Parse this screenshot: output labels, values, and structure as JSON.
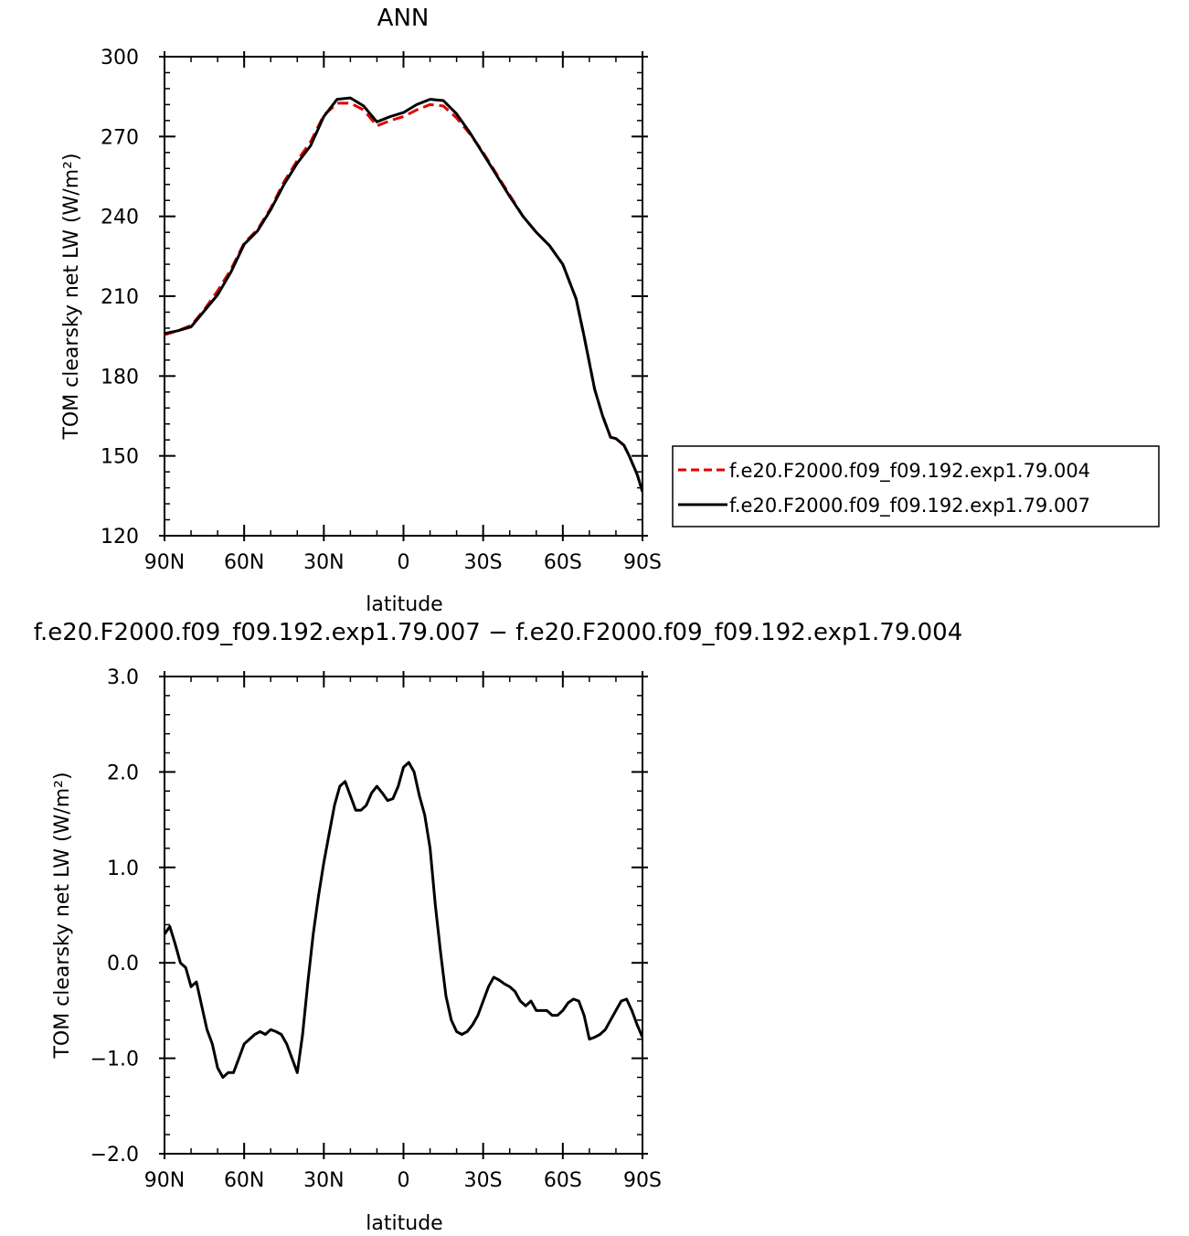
{
  "chart_data": [
    {
      "type": "line",
      "title": "ANN",
      "xlabel": "latitude",
      "ylabel": "TOM clearsky net LW (W/m²)",
      "xlim": [
        90,
        -90
      ],
      "ylim": [
        120,
        300
      ],
      "xticks": [
        {
          "value": 90,
          "label": "90N"
        },
        {
          "value": 60,
          "label": "60N"
        },
        {
          "value": 30,
          "label": "30N"
        },
        {
          "value": 0,
          "label": "0"
        },
        {
          "value": -30,
          "label": "30S"
        },
        {
          "value": -60,
          "label": "60S"
        },
        {
          "value": -90,
          "label": "90S"
        }
      ],
      "yticks": [
        {
          "value": 120,
          "label": "120"
        },
        {
          "value": 150,
          "label": "150"
        },
        {
          "value": 180,
          "label": "180"
        },
        {
          "value": 210,
          "label": "210"
        },
        {
          "value": 240,
          "label": "240"
        },
        {
          "value": 270,
          "label": "270"
        },
        {
          "value": 300,
          "label": "300"
        }
      ],
      "legend_position": "right",
      "series": [
        {
          "name": "f.e20.F2000.f09_f09.192.exp1.79.004",
          "color": "#e00000",
          "dash": "dashed",
          "x": [
            90,
            85,
            80,
            75,
            70,
            65,
            60,
            55,
            50,
            45,
            40,
            35,
            30,
            25,
            20,
            15,
            10,
            5,
            0,
            -5,
            -10,
            -15,
            -20,
            -25,
            -30,
            -35,
            -40,
            -45,
            -50,
            -55,
            -60,
            -65,
            -68,
            -70,
            -72,
            -75,
            -78,
            -80,
            -83,
            -85,
            -88,
            -90
          ],
          "y": [
            195.5,
            197,
            199,
            205,
            212,
            220,
            230,
            235,
            243,
            253,
            261,
            268,
            278,
            282.5,
            282.5,
            280,
            274,
            276,
            277.5,
            280,
            282,
            281.5,
            277,
            271,
            264,
            256,
            248,
            240,
            234,
            229,
            222,
            209,
            195,
            185,
            175,
            165,
            157,
            156.5,
            154,
            150,
            143,
            137
          ]
        },
        {
          "name": "f.e20.F2000.f09_f09.192.exp1.79.007",
          "color": "#000000",
          "dash": "solid",
          "x": [
            90,
            85,
            80,
            75,
            70,
            65,
            60,
            55,
            50,
            45,
            40,
            35,
            30,
            25,
            20,
            15,
            10,
            5,
            0,
            -5,
            -10,
            -15,
            -20,
            -25,
            -30,
            -35,
            -40,
            -45,
            -50,
            -55,
            -60,
            -65,
            -68,
            -70,
            -72,
            -75,
            -78,
            -80,
            -83,
            -85,
            -88,
            -90
          ],
          "y": [
            196,
            197,
            198.5,
            204.5,
            210.5,
            219,
            229.5,
            234.5,
            242.5,
            252,
            260,
            266.5,
            277.5,
            284,
            284.5,
            281.5,
            275.5,
            277.5,
            279,
            282,
            284,
            283.5,
            278.5,
            271.5,
            263.5,
            255.5,
            247.5,
            240,
            234,
            229,
            222,
            209,
            195,
            185,
            175,
            165,
            157,
            156.5,
            154,
            150,
            143,
            136.5
          ]
        }
      ]
    },
    {
      "type": "line",
      "title": "f.e20.F2000.f09_f09.192.exp1.79.007 − f.e20.F2000.f09_f09.192.exp1.79.004",
      "xlabel": "latitude",
      "ylabel": "TOM clearsky net LW (W/m²)",
      "xlim": [
        90,
        -90
      ],
      "ylim": [
        -2.0,
        3.0
      ],
      "xticks": [
        {
          "value": 90,
          "label": "90N"
        },
        {
          "value": 60,
          "label": "60N"
        },
        {
          "value": 30,
          "label": "30N"
        },
        {
          "value": 0,
          "label": "0"
        },
        {
          "value": -30,
          "label": "30S"
        },
        {
          "value": -60,
          "label": "60S"
        },
        {
          "value": -90,
          "label": "90S"
        }
      ],
      "yticks": [
        {
          "value": -2.0,
          "label": "−2.0"
        },
        {
          "value": -1.0,
          "label": "−1.0"
        },
        {
          "value": 0.0,
          "label": "0.0"
        },
        {
          "value": 1.0,
          "label": "1.0"
        },
        {
          "value": 2.0,
          "label": "2.0"
        },
        {
          "value": 3.0,
          "label": "3.0"
        }
      ],
      "series": [
        {
          "color": "#000000",
          "dash": "solid",
          "x": [
            90,
            88,
            86,
            84,
            82,
            80,
            78,
            76,
            74,
            72,
            70,
            68,
            66,
            64,
            62,
            60,
            58,
            56,
            54,
            52,
            50,
            48,
            46,
            44,
            42,
            40,
            38,
            36,
            34,
            32,
            30,
            28,
            26,
            24,
            22,
            20,
            18,
            16,
            14,
            12,
            10,
            8,
            6,
            4,
            2,
            0,
            -2,
            -4,
            -6,
            -8,
            -10,
            -12,
            -14,
            -16,
            -18,
            -20,
            -22,
            -24,
            -26,
            -28,
            -30,
            -32,
            -34,
            -36,
            -38,
            -40,
            -42,
            -44,
            -46,
            -48,
            -50,
            -52,
            -54,
            -56,
            -58,
            -60,
            -62,
            -64,
            -66,
            -68,
            -70,
            -72,
            -74,
            -76,
            -78,
            -80,
            -82,
            -84,
            -86,
            -88,
            -90
          ],
          "y": [
            0.3,
            0.38,
            0.2,
            0.0,
            -0.05,
            -0.25,
            -0.2,
            -0.45,
            -0.7,
            -0.85,
            -1.1,
            -1.2,
            -1.15,
            -1.15,
            -1.0,
            -0.85,
            -0.8,
            -0.75,
            -0.72,
            -0.75,
            -0.7,
            -0.72,
            -0.75,
            -0.85,
            -1.0,
            -1.15,
            -0.75,
            -0.2,
            0.3,
            0.7,
            1.05,
            1.35,
            1.65,
            1.85,
            1.9,
            1.75,
            1.6,
            1.6,
            1.65,
            1.78,
            1.85,
            1.78,
            1.7,
            1.72,
            1.85,
            2.05,
            2.1,
            2.0,
            1.75,
            1.55,
            1.2,
            0.6,
            0.1,
            -0.35,
            -0.6,
            -0.72,
            -0.75,
            -0.72,
            -0.65,
            -0.55,
            -0.4,
            -0.25,
            -0.15,
            -0.18,
            -0.22,
            -0.25,
            -0.3,
            -0.4,
            -0.45,
            -0.4,
            -0.5,
            -0.5,
            -0.5,
            -0.55,
            -0.55,
            -0.5,
            -0.42,
            -0.38,
            -0.4,
            -0.55,
            -0.8,
            -0.78,
            -0.75,
            -0.7,
            -0.6,
            -0.5,
            -0.4,
            -0.38,
            -0.5,
            -0.65,
            -0.78
          ]
        }
      ]
    }
  ]
}
